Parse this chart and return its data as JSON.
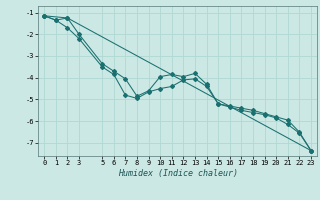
{
  "xlabel": "Humidex (Indice chaleur)",
  "background_color": "#cce8e4",
  "grid_color": "#b0d8d4",
  "line_color": "#1a7070",
  "xlim": [
    -0.5,
    23.5
  ],
  "ylim": [
    -7.6,
    -0.7
  ],
  "yticks": [
    -1,
    -2,
    -3,
    -4,
    -5,
    -6,
    -7
  ],
  "xticks": [
    0,
    1,
    2,
    3,
    5,
    6,
    7,
    8,
    9,
    10,
    11,
    12,
    13,
    14,
    15,
    16,
    17,
    18,
    19,
    20,
    21,
    22,
    23
  ],
  "line1_x": [
    0,
    1,
    2,
    3,
    5,
    6,
    7,
    8,
    9,
    10,
    11,
    12,
    13,
    14,
    15,
    16,
    17,
    18,
    19,
    20,
    21,
    22,
    23
  ],
  "line1_y": [
    -1.15,
    -1.35,
    -1.25,
    -2.0,
    -3.35,
    -3.7,
    -4.05,
    -4.85,
    -4.6,
    -3.95,
    -3.85,
    -3.95,
    -3.8,
    -4.3,
    -5.2,
    -5.3,
    -5.4,
    -5.5,
    -5.65,
    -5.8,
    -5.95,
    -6.5,
    -7.35
  ],
  "line2_x": [
    0,
    1,
    2,
    3,
    5,
    6,
    7,
    8,
    9,
    10,
    11,
    12,
    13,
    14,
    15,
    16,
    17,
    18,
    19,
    20,
    21,
    22,
    23
  ],
  "line2_y": [
    -1.15,
    -1.35,
    -1.7,
    -2.2,
    -3.5,
    -3.85,
    -4.8,
    -4.95,
    -4.65,
    -4.5,
    -4.4,
    -4.1,
    -4.05,
    -4.4,
    -5.2,
    -5.35,
    -5.5,
    -5.6,
    -5.7,
    -5.85,
    -6.15,
    -6.55,
    -7.35
  ],
  "line3_x": [
    0,
    2,
    23
  ],
  "line3_y": [
    -1.15,
    -1.25,
    -7.35
  ]
}
